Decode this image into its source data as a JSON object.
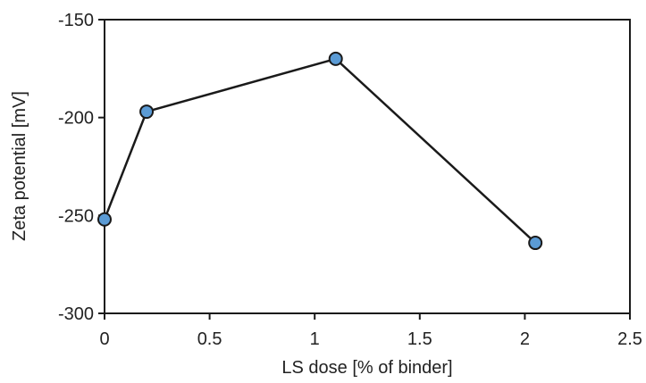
{
  "chart_data": {
    "type": "line",
    "title": "",
    "xlabel": "LS dose [% of binder]",
    "ylabel": "Zeta potential [mV]",
    "xlim": [
      0,
      2.5
    ],
    "ylim": [
      -300,
      -150
    ],
    "xticks": [
      0,
      0.5,
      1,
      1.5,
      2,
      2.5
    ],
    "xtick_labels": [
      "0",
      "0.5",
      "1",
      "1.5",
      "2",
      "2.5"
    ],
    "yticks": [
      -300,
      -250,
      -200,
      -150
    ],
    "ytick_labels": [
      "-300",
      "-250",
      "-200",
      "-150"
    ],
    "grid": false,
    "legend": "none",
    "series": [
      {
        "x": [
          0,
          0.2,
          1.1,
          2.05
        ],
        "y": [
          -252,
          -197,
          -170,
          -264
        ],
        "line_color": "#1a1a1a",
        "marker": "circle",
        "marker_fill": "#5b9bd5",
        "marker_edge": "#1a1a1a"
      }
    ]
  }
}
